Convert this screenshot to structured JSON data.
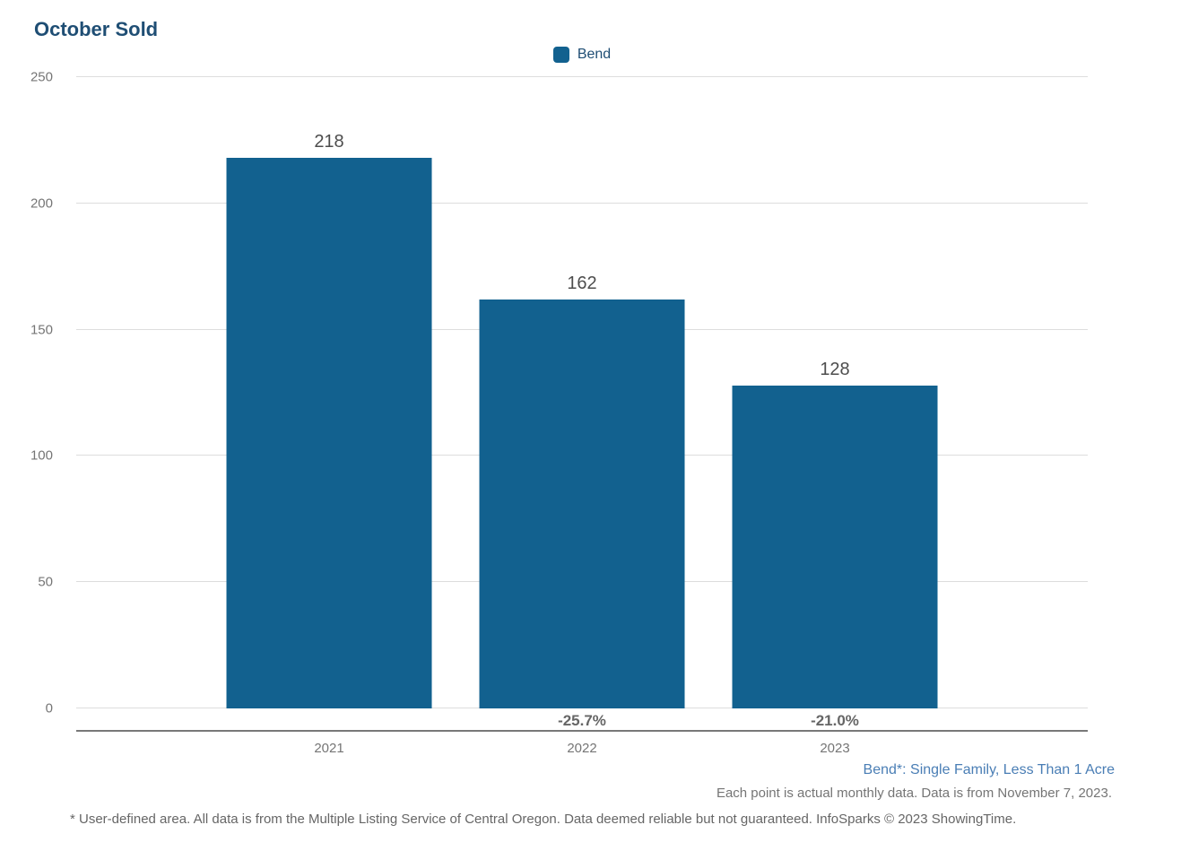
{
  "chart_data": {
    "type": "bar",
    "title": "October Sold",
    "categories": [
      "2021",
      "2022",
      "2023"
    ],
    "series": [
      {
        "name": "Bend",
        "color": "#12618f",
        "values": [
          218,
          162,
          128
        ]
      }
    ],
    "pct_change_labels": [
      "",
      "-25.7%",
      "-21.0%"
    ],
    "ylim": [
      0,
      250
    ],
    "yticks": [
      0,
      50,
      100,
      150,
      200,
      250
    ],
    "grid": true,
    "legend_position": "top-center"
  },
  "footnotes": {
    "series_note": "Bend*: Single Family, Less Than 1 Acre",
    "data_note": "Each point is actual monthly data. Data is from November 7, 2023.",
    "disclaimer": "* User-defined area. All data is from the Multiple Listing Service of Central Oregon. Data deemed reliable but not guaranteed. InfoSparks © 2023 ShowingTime."
  },
  "colors": {
    "bar": "#12618f",
    "title": "#1f4e74",
    "legend_text": "#1f4e74",
    "value_label": "#4d4d4d",
    "pct_label": "#666666",
    "tick_label": "#757575",
    "gridline": "#dddddd",
    "axis_line": "#787878",
    "series_note": "#4a7eb5"
  }
}
